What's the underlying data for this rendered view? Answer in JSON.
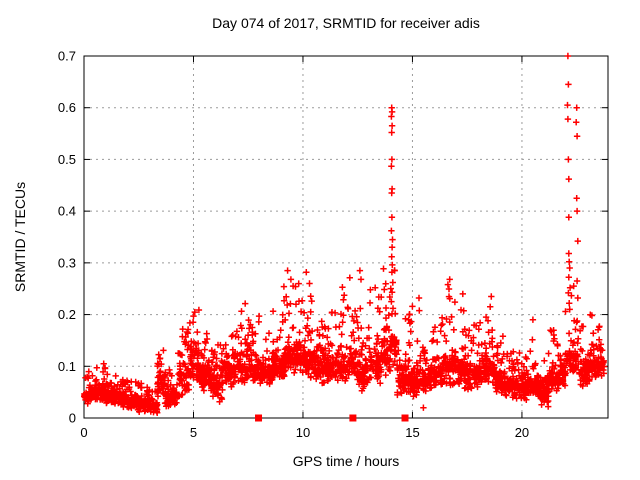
{
  "chart_data": {
    "type": "scatter",
    "title": "Day 074 of 2017, SRMTID for receiver adis",
    "xlabel": "GPS time / hours",
    "ylabel": "SRMTID / TECUs",
    "xlim": [
      0,
      23.93
    ],
    "ylim": [
      0,
      0.7
    ],
    "xticks": [
      0,
      5,
      10,
      15,
      20
    ],
    "yticks": [
      0,
      0.1,
      0.2,
      0.3,
      0.4,
      0.5,
      0.6,
      0.7
    ],
    "grid": true,
    "legend": "none",
    "marker": "plus",
    "marker_color": "#ff0000",
    "grid_color": "#9b9b9b",
    "border_color": "#000000",
    "background_color": "#ffffff",
    "zero_square_hours": [
      7.97,
      12.28,
      14.66
    ],
    "seed": 20170074,
    "noise_envelope": [
      [
        0.0,
        0.5,
        60,
        0.025,
        0.065,
        0.095
      ],
      [
        0.5,
        1.0,
        60,
        0.028,
        0.07,
        0.105
      ],
      [
        1.0,
        1.5,
        60,
        0.022,
        0.06,
        0.09
      ],
      [
        1.5,
        2.0,
        60,
        0.02,
        0.055,
        0.082
      ],
      [
        2.0,
        2.5,
        60,
        0.015,
        0.05,
        0.075
      ],
      [
        2.5,
        3.0,
        60,
        0.01,
        0.042,
        0.068
      ],
      [
        3.0,
        3.35,
        40,
        0.008,
        0.035,
        0.055
      ],
      [
        3.35,
        3.7,
        42,
        0.04,
        0.1,
        0.132
      ],
      [
        3.7,
        4.3,
        70,
        0.02,
        0.06,
        0.095
      ],
      [
        4.3,
        4.8,
        60,
        0.04,
        0.12,
        0.175
      ],
      [
        4.8,
        5.25,
        55,
        0.07,
        0.16,
        0.21
      ],
      [
        5.25,
        5.8,
        65,
        0.05,
        0.12,
        0.17
      ],
      [
        5.8,
        6.3,
        60,
        0.03,
        0.1,
        0.15
      ],
      [
        6.3,
        6.9,
        70,
        0.05,
        0.12,
        0.18
      ],
      [
        6.9,
        7.6,
        80,
        0.06,
        0.14,
        0.23
      ],
      [
        7.6,
        8.1,
        60,
        0.06,
        0.12,
        0.2
      ],
      [
        8.1,
        8.6,
        60,
        0.06,
        0.11,
        0.17
      ],
      [
        8.6,
        9.1,
        60,
        0.07,
        0.13,
        0.21
      ],
      [
        9.1,
        9.6,
        60,
        0.07,
        0.15,
        0.265
      ],
      [
        9.6,
        10.1,
        60,
        0.08,
        0.16,
        0.275
      ],
      [
        10.1,
        10.6,
        60,
        0.07,
        0.14,
        0.24
      ],
      [
        10.6,
        11.1,
        60,
        0.06,
        0.13,
        0.22
      ],
      [
        11.1,
        11.6,
        60,
        0.07,
        0.14,
        0.21
      ],
      [
        11.6,
        12.1,
        60,
        0.07,
        0.13,
        0.25
      ],
      [
        12.1,
        12.45,
        45,
        0.07,
        0.14,
        0.28
      ],
      [
        12.45,
        13.0,
        65,
        0.05,
        0.12,
        0.22
      ],
      [
        13.0,
        13.6,
        70,
        0.06,
        0.14,
        0.25
      ],
      [
        13.6,
        14.0,
        50,
        0.08,
        0.17,
        0.3
      ],
      [
        14.0,
        14.3,
        35,
        0.09,
        0.18,
        0.3
      ],
      [
        14.3,
        14.85,
        60,
        0.04,
        0.11,
        0.2
      ],
      [
        14.85,
        15.35,
        60,
        0.04,
        0.1,
        0.22
      ],
      [
        15.35,
        15.85,
        60,
        0.05,
        0.1,
        0.16
      ],
      [
        15.85,
        16.35,
        60,
        0.05,
        0.11,
        0.18
      ],
      [
        16.35,
        16.85,
        60,
        0.06,
        0.13,
        0.265
      ],
      [
        16.85,
        17.35,
        60,
        0.06,
        0.13,
        0.24
      ],
      [
        17.35,
        17.85,
        60,
        0.05,
        0.12,
        0.18
      ],
      [
        17.85,
        18.35,
        60,
        0.06,
        0.12,
        0.19
      ],
      [
        18.35,
        18.75,
        50,
        0.06,
        0.13,
        0.23
      ],
      [
        18.75,
        19.25,
        60,
        0.04,
        0.1,
        0.16
      ],
      [
        19.25,
        19.75,
        60,
        0.035,
        0.09,
        0.14
      ],
      [
        19.75,
        20.25,
        60,
        0.03,
        0.08,
        0.13
      ],
      [
        20.25,
        20.75,
        60,
        0.04,
        0.09,
        0.18
      ],
      [
        20.75,
        21.25,
        60,
        0.02,
        0.08,
        0.14
      ],
      [
        21.25,
        21.75,
        60,
        0.05,
        0.1,
        0.17
      ],
      [
        21.75,
        22.0,
        30,
        0.06,
        0.12,
        0.22
      ],
      [
        22.0,
        22.6,
        55,
        0.08,
        0.16,
        0.28
      ],
      [
        22.6,
        23.0,
        50,
        0.06,
        0.12,
        0.2
      ],
      [
        23.0,
        23.4,
        50,
        0.07,
        0.13,
        0.2
      ],
      [
        23.4,
        23.75,
        40,
        0.08,
        0.13,
        0.18
      ]
    ],
    "spike_points": [
      [
        14.05,
        0.6
      ],
      [
        14.07,
        0.592
      ],
      [
        14.04,
        0.583
      ],
      [
        14.07,
        0.565
      ],
      [
        14.05,
        0.552
      ],
      [
        14.06,
        0.5
      ],
      [
        14.04,
        0.487
      ],
      [
        14.07,
        0.443
      ],
      [
        14.05,
        0.435
      ],
      [
        14.06,
        0.388
      ],
      [
        14.04,
        0.362
      ],
      [
        14.09,
        0.345
      ],
      [
        14.07,
        0.33
      ],
      [
        14.05,
        0.312
      ],
      [
        14.08,
        0.296
      ],
      [
        14.06,
        0.282
      ],
      [
        14.1,
        0.262
      ],
      [
        14.07,
        0.243
      ],
      [
        14.04,
        0.225
      ],
      [
        14.11,
        0.212
      ],
      [
        22.1,
        0.7
      ],
      [
        22.12,
        0.645
      ],
      [
        22.08,
        0.605
      ],
      [
        22.5,
        0.6
      ],
      [
        22.1,
        0.578
      ],
      [
        22.48,
        0.572
      ],
      [
        22.52,
        0.545
      ],
      [
        22.12,
        0.5
      ],
      [
        22.14,
        0.462
      ],
      [
        22.5,
        0.425
      ],
      [
        22.52,
        0.4
      ],
      [
        22.14,
        0.388
      ],
      [
        22.55,
        0.342
      ],
      [
        22.14,
        0.318
      ],
      [
        22.16,
        0.302
      ],
      [
        22.18,
        0.29
      ],
      [
        22.14,
        0.272
      ],
      [
        22.52,
        0.265
      ],
      [
        22.2,
        0.252
      ],
      [
        22.12,
        0.242
      ],
      [
        22.55,
        0.232
      ],
      [
        22.16,
        0.222
      ],
      [
        22.18,
        0.21
      ],
      [
        0.9,
        0.105
      ],
      [
        9.3,
        0.285
      ],
      [
        9.45,
        0.268
      ],
      [
        9.55,
        0.255
      ],
      [
        10.15,
        0.282
      ],
      [
        10.3,
        0.26
      ],
      [
        11.8,
        0.253
      ],
      [
        12.6,
        0.285
      ],
      [
        12.65,
        0.268
      ],
      [
        13.3,
        0.252
      ],
      [
        15.3,
        0.232
      ],
      [
        15.5,
        0.02
      ],
      [
        16.7,
        0.268
      ],
      [
        16.62,
        0.258
      ],
      [
        17.3,
        0.24
      ],
      [
        18.6,
        0.235
      ],
      [
        18.55,
        0.215
      ],
      [
        20.5,
        0.19
      ],
      [
        21.2,
        0.022
      ]
    ]
  }
}
